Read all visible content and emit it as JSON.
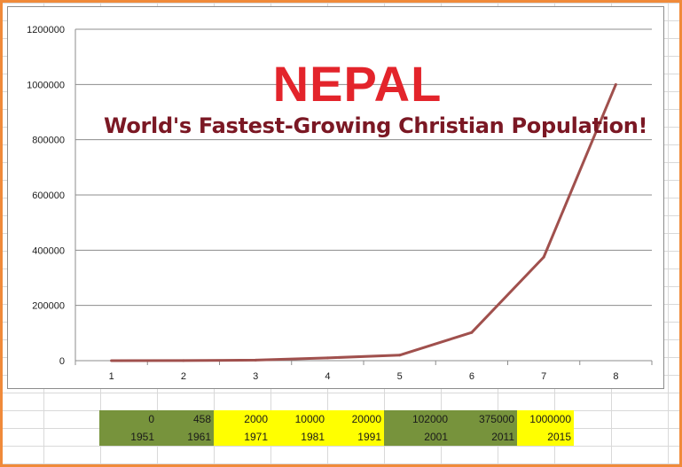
{
  "chart_data": {
    "type": "line",
    "title": "NEPAL",
    "subtitle": "World's Fastest-Growing Christian Population!",
    "x": [
      1,
      2,
      3,
      4,
      5,
      6,
      7,
      8
    ],
    "xtick_labels": [
      "1",
      "2",
      "3",
      "4",
      "5",
      "6",
      "7",
      "8"
    ],
    "series": [
      {
        "values": [
          0,
          458,
          2000,
          10000,
          20000,
          102000,
          375000,
          1000000
        ],
        "color": "#a0504d"
      }
    ],
    "ylim": [
      0,
      1200000
    ],
    "yticks": [
      "0",
      "200000",
      "400000",
      "600000",
      "800000",
      "1000000",
      "1200000"
    ],
    "grid": true,
    "legend": "none"
  },
  "table": {
    "values": [
      "0",
      "458",
      "2000",
      "10000",
      "20000",
      "102000",
      "375000",
      "1000000"
    ],
    "years": [
      "1951",
      "1961",
      "1971",
      "1981",
      "1991",
      "2001",
      "2011",
      "2015"
    ],
    "cell_colors": [
      "#77933c",
      "#77933c",
      "#ffff00",
      "#ffff00",
      "#ffff00",
      "#77933c",
      "#77933c",
      "#ffff00"
    ]
  },
  "colors": {
    "title": "#e3242b",
    "subtitle": "#7b1824",
    "frame": "#f08a3a"
  }
}
